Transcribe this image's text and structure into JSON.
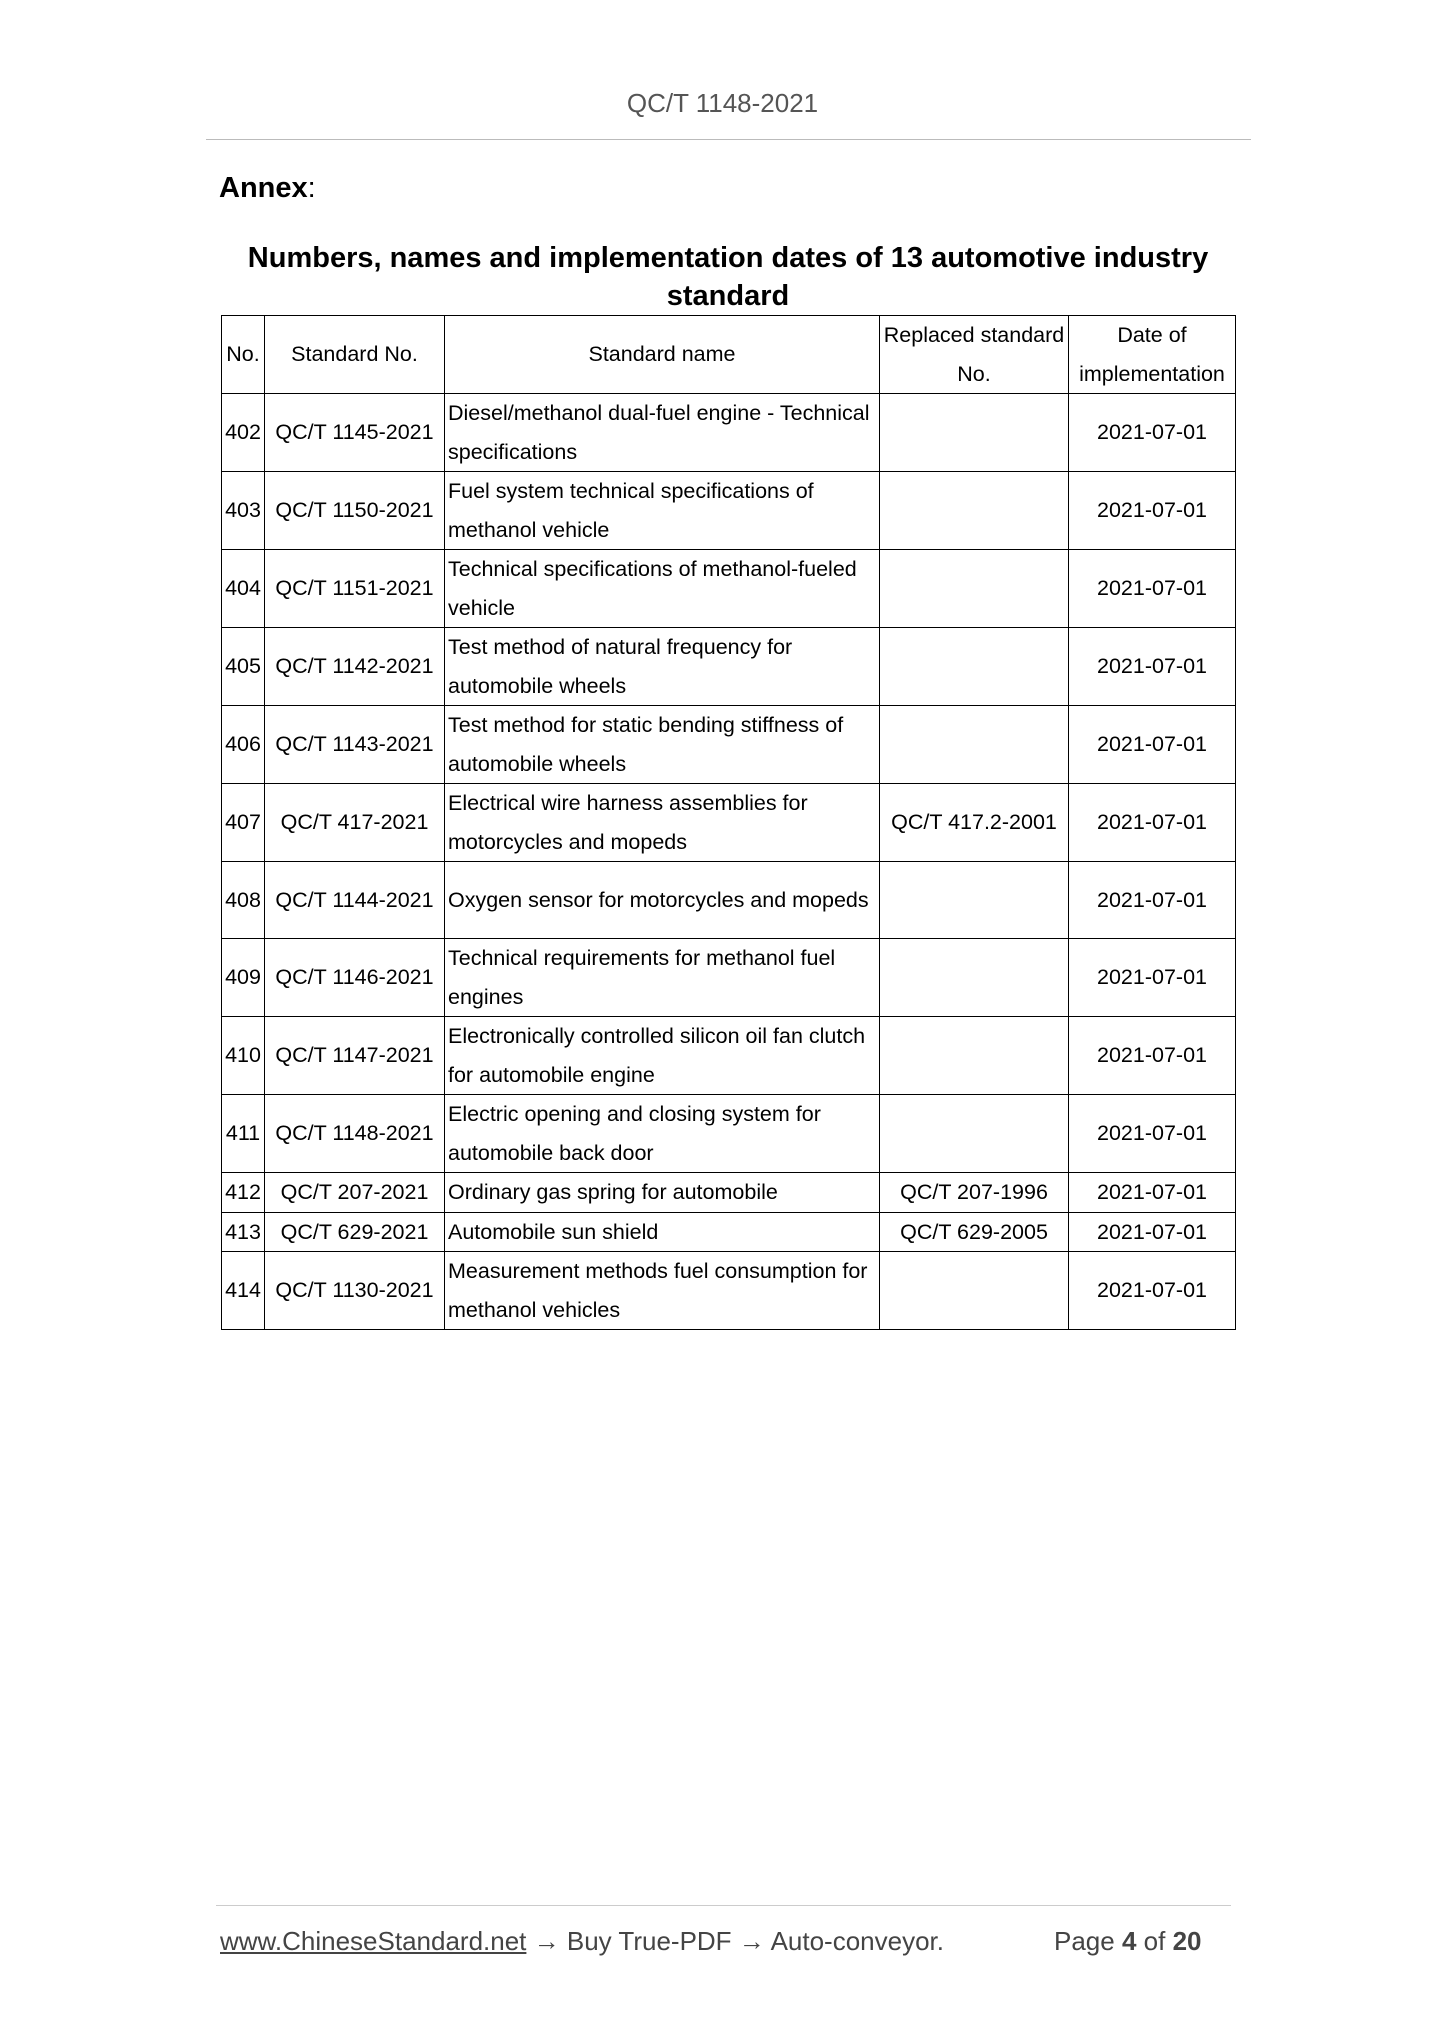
{
  "header": {
    "doc_id": "QC/T 1148-2021"
  },
  "annex": {
    "label": "Annex",
    "colon": ":"
  },
  "title": "Numbers, names and implementation dates of 13 automotive industry standard",
  "table": {
    "columns": [
      "No.",
      "Standard No.",
      "Standard name",
      "Replaced standard No.",
      "Date of implementation"
    ],
    "rows": [
      {
        "no": "402",
        "std": "QC/T 1145-2021",
        "name": "Diesel/methanol dual-fuel engine - Technical specifications",
        "replaced": "",
        "date": "2021-07-01"
      },
      {
        "no": "403",
        "std": "QC/T 1150-2021",
        "name": "Fuel system technical specifications of methanol vehicle",
        "replaced": "",
        "date": "2021-07-01"
      },
      {
        "no": "404",
        "std": "QC/T 1151-2021",
        "name": "Technical specifications of methanol-fueled vehicle",
        "replaced": "",
        "date": "2021-07-01"
      },
      {
        "no": "405",
        "std": "QC/T 1142-2021",
        "name": "Test method of natural frequency for automobile wheels",
        "replaced": "",
        "date": "2021-07-01"
      },
      {
        "no": "406",
        "std": "QC/T 1143-2021",
        "name": "Test method for static bending stiffness of automobile wheels",
        "replaced": "",
        "date": "2021-07-01"
      },
      {
        "no": "407",
        "std": "QC/T 417-2021",
        "name": "Electrical wire harness assemblies for motorcycles and mopeds",
        "replaced": "QC/T 417.2-2001",
        "date": "2021-07-01"
      },
      {
        "no": "408",
        "std": "QC/T 1144-2021",
        "name": "Oxygen sensor for motorcycles and mopeds",
        "replaced": "",
        "date": "2021-07-01"
      },
      {
        "no": "409",
        "std": "QC/T 1146-2021",
        "name": "Technical requirements for methanol fuel engines",
        "replaced": "",
        "date": "2021-07-01"
      },
      {
        "no": "410",
        "std": "QC/T 1147-2021",
        "name": "Electronically controlled silicon oil fan clutch for automobile engine",
        "replaced": "",
        "date": "2021-07-01"
      },
      {
        "no": "411",
        "std": "QC/T 1148-2021",
        "name": "Electric opening and closing system for automobile back door",
        "replaced": "",
        "date": "2021-07-01"
      },
      {
        "no": "412",
        "std": "QC/T 207-2021",
        "name": "Ordinary gas spring for automobile",
        "replaced": "QC/T 207-1996",
        "date": "2021-07-01"
      },
      {
        "no": "413",
        "std": "QC/T 629-2021",
        "name": "Automobile sun shield",
        "replaced": "QC/T 629-2005",
        "date": "2021-07-01"
      },
      {
        "no": "414",
        "std": "QC/T 1130-2021",
        "name": "Measurement methods fuel consumption for methanol vehicles",
        "replaced": "",
        "date": "2021-07-01"
      }
    ]
  },
  "footer": {
    "link": "www.ChineseStandard.net",
    "trail": " → Buy True-PDF → Auto-conveyor.",
    "page_word": "Page",
    "page_num": "4",
    "of_word": "of",
    "page_total": "20"
  }
}
